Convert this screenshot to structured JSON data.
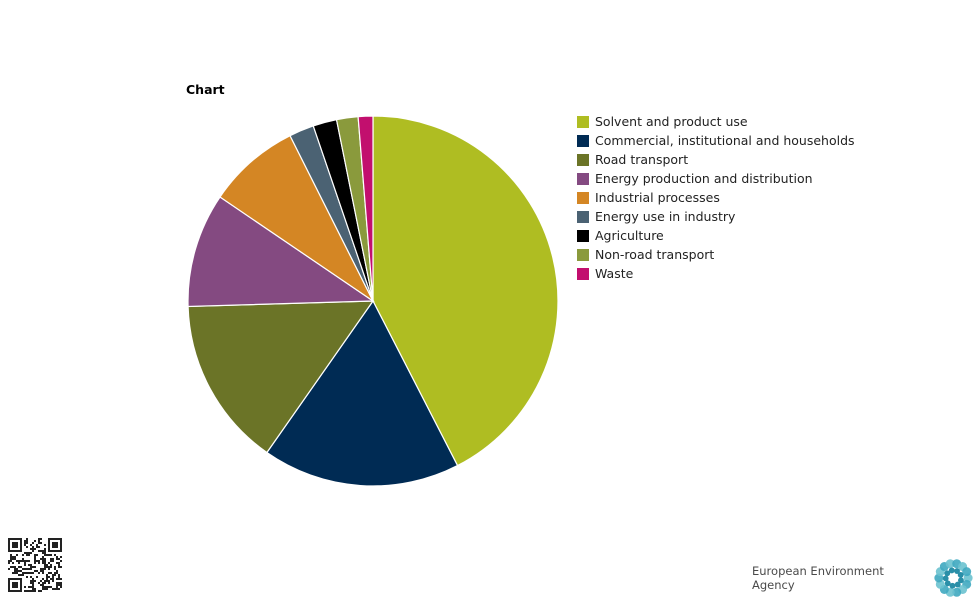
{
  "chart_data": {
    "type": "pie",
    "title": "Chart",
    "legend_position": "right",
    "series": [
      {
        "name": "Solvent and product use",
        "value": 43.0,
        "color": "#afbd22"
      },
      {
        "name": "Commercial, institutional and households",
        "value": 17.5,
        "color": "#002b54"
      },
      {
        "name": "Road transport",
        "value": 15.0,
        "color": "#6b7427"
      },
      {
        "name": "Energy production and distribution",
        "value": 10.1,
        "color": "#844a81"
      },
      {
        "name": "Industrial processes",
        "value": 8.2,
        "color": "#d48624"
      },
      {
        "name": "Energy use in industry",
        "value": 2.2,
        "color": "#4b6273"
      },
      {
        "name": "Agriculture",
        "value": 2.1,
        "color": "#000000"
      },
      {
        "name": "Non-road transport",
        "value": 1.9,
        "color": "#8a9a3c"
      },
      {
        "name": "Waste",
        "value": 1.3,
        "color": "#c20f6e"
      }
    ]
  },
  "footer": {
    "agency_name": "European Environment Agency",
    "qr_icon": "qr-code-icon",
    "logo_icon": "eea-logo-icon"
  }
}
